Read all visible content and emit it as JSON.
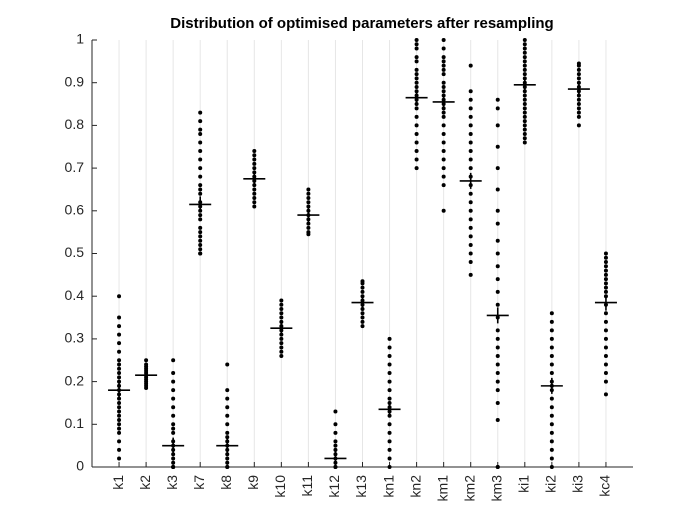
{
  "chart_data": {
    "type": "strip",
    "title": "Distribution of optimised parameters after resampling",
    "categories": [
      "k1",
      "k2",
      "k3",
      "k7",
      "k8",
      "k9",
      "k10",
      "k11",
      "k12",
      "k13",
      "kn1",
      "kn2",
      "km1",
      "km2",
      "km3",
      "ki1",
      "ki2",
      "ki3",
      "kc4"
    ],
    "points": [
      [
        0.4,
        0.35,
        0.33,
        0.31,
        0.29,
        0.27,
        0.25,
        0.24,
        0.23,
        0.22,
        0.21,
        0.2,
        0.19,
        0.18,
        0.17,
        0.16,
        0.15,
        0.14,
        0.13,
        0.12,
        0.11,
        0.1,
        0.09,
        0.08,
        0.06,
        0.04,
        0.02
      ],
      [
        0.25,
        0.24,
        0.235,
        0.23,
        0.225,
        0.22,
        0.215,
        0.21,
        0.205,
        0.2,
        0.195,
        0.19,
        0.185
      ],
      [
        0.25,
        0.22,
        0.2,
        0.18,
        0.16,
        0.14,
        0.12,
        0.1,
        0.09,
        0.08,
        0.06,
        0.05,
        0.04,
        0.03,
        0.02,
        0.01,
        0,
        0,
        0
      ],
      [
        0.83,
        0.81,
        0.79,
        0.78,
        0.76,
        0.74,
        0.72,
        0.7,
        0.68,
        0.66,
        0.65,
        0.64,
        0.62,
        0.61,
        0.6,
        0.59,
        0.58,
        0.56,
        0.55,
        0.54,
        0.53,
        0.52,
        0.51,
        0.5,
        0.5
      ],
      [
        0.24,
        0.18,
        0.16,
        0.14,
        0.12,
        0.1,
        0.08,
        0.07,
        0.06,
        0.05,
        0.04,
        0.03,
        0.02,
        0.01,
        0,
        0
      ],
      [
        0.74,
        0.73,
        0.72,
        0.71,
        0.7,
        0.69,
        0.68,
        0.67,
        0.66,
        0.65,
        0.64,
        0.63,
        0.62,
        0.61
      ],
      [
        0.39,
        0.38,
        0.37,
        0.36,
        0.35,
        0.34,
        0.33,
        0.32,
        0.31,
        0.3,
        0.29,
        0.28,
        0.27,
        0.26
      ],
      [
        0.65,
        0.64,
        0.63,
        0.62,
        0.61,
        0.6,
        0.59,
        0.58,
        0.57,
        0.56,
        0.55,
        0.545
      ],
      [
        0.13,
        0.1,
        0.08,
        0.06,
        0.05,
        0.04,
        0.03,
        0.02,
        0.01,
        0,
        0
      ],
      [
        0.435,
        0.43,
        0.42,
        0.41,
        0.4,
        0.39,
        0.38,
        0.37,
        0.36,
        0.35,
        0.34,
        0.33
      ],
      [
        0.3,
        0.28,
        0.26,
        0.24,
        0.22,
        0.2,
        0.18,
        0.16,
        0.15,
        0.14,
        0.13,
        0.12,
        0.1,
        0.08,
        0.06,
        0.04,
        0.02,
        0
      ],
      [
        1,
        0.99,
        0.98,
        0.96,
        0.95,
        0.93,
        0.92,
        0.91,
        0.9,
        0.89,
        0.88,
        0.87,
        0.86,
        0.85,
        0.84,
        0.82,
        0.8,
        0.78,
        0.76,
        0.74,
        0.72,
        0.7
      ],
      [
        1,
        0.98,
        0.96,
        0.95,
        0.94,
        0.93,
        0.92,
        0.9,
        0.89,
        0.88,
        0.87,
        0.86,
        0.85,
        0.84,
        0.83,
        0.82,
        0.8,
        0.78,
        0.76,
        0.74,
        0.72,
        0.7,
        0.68,
        0.66,
        0.6
      ],
      [
        0.94,
        0.88,
        0.86,
        0.84,
        0.82,
        0.8,
        0.78,
        0.76,
        0.74,
        0.72,
        0.7,
        0.68,
        0.66,
        0.64,
        0.62,
        0.6,
        0.58,
        0.56,
        0.54,
        0.52,
        0.5,
        0.48,
        0.45
      ],
      [
        0.86,
        0.84,
        0.8,
        0.75,
        0.7,
        0.65,
        0.6,
        0.57,
        0.53,
        0.5,
        0.47,
        0.44,
        0.41,
        0.38,
        0.35,
        0.32,
        0.3,
        0.28,
        0.26,
        0.24,
        0.22,
        0.2,
        0.18,
        0.15,
        0.11,
        0,
        0
      ],
      [
        1,
        0.99,
        0.98,
        0.97,
        0.96,
        0.95,
        0.94,
        0.93,
        0.92,
        0.91,
        0.9,
        0.89,
        0.88,
        0.87,
        0.86,
        0.85,
        0.84,
        0.83,
        0.82,
        0.81,
        0.8,
        0.79,
        0.78,
        0.77,
        0.76
      ],
      [
        0.36,
        0.34,
        0.32,
        0.3,
        0.28,
        0.26,
        0.24,
        0.22,
        0.2,
        0.19,
        0.18,
        0.16,
        0.14,
        0.12,
        0.1,
        0.08,
        0.06,
        0.04,
        0.02,
        0
      ],
      [
        0.945,
        0.94,
        0.93,
        0.92,
        0.91,
        0.9,
        0.89,
        0.88,
        0.87,
        0.86,
        0.85,
        0.84,
        0.83,
        0.82,
        0.8
      ],
      [
        0.5,
        0.49,
        0.48,
        0.47,
        0.46,
        0.45,
        0.44,
        0.43,
        0.42,
        0.41,
        0.4,
        0.38,
        0.36,
        0.34,
        0.32,
        0.3,
        0.28,
        0.26,
        0.24,
        0.22,
        0.2,
        0.17
      ]
    ],
    "centers": [
      0.18,
      0.215,
      0.05,
      0.615,
      0.05,
      0.675,
      0.325,
      0.59,
      0.02,
      0.385,
      0.135,
      0.865,
      0.855,
      0.67,
      0.355,
      0.895,
      0.19,
      0.885,
      0.385
    ],
    "color": "#000000",
    "xlim": [
      0,
      20
    ],
    "ylim": [
      0,
      1
    ],
    "yticks": [
      0,
      0.1,
      0.2,
      0.3,
      0.4,
      0.5,
      0.6,
      0.7,
      0.8,
      0.9,
      1
    ],
    "grid": true
  }
}
